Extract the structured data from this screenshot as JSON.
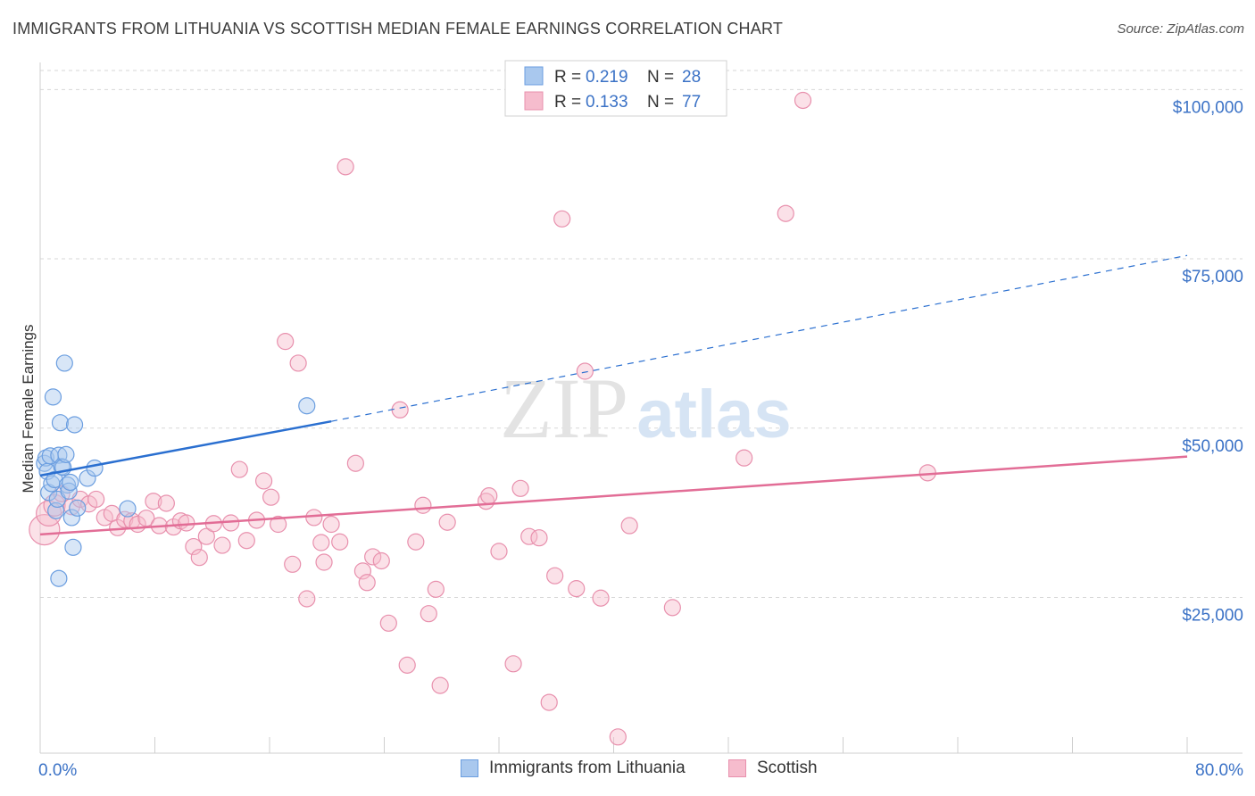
{
  "title": "IMMIGRANTS FROM LITHUANIA VS SCOTTISH MEDIAN FEMALE EARNINGS CORRELATION CHART",
  "source": "Source: ZipAtlas.com",
  "watermark": {
    "zip": "ZIP",
    "atlas": "atlas"
  },
  "colors": {
    "blue_fill": "#a9c8ee",
    "blue_stroke": "#6b9ee0",
    "blue_line": "#2a6fd0",
    "pink_fill": "#f6bccd",
    "pink_stroke": "#e890ad",
    "pink_line": "#e26d96",
    "value_text": "#3b72c6",
    "grid": "#d7d7d7"
  },
  "legend": {
    "rows": [
      {
        "r_label": "R =",
        "r_value": "0.219",
        "n_label": "N =",
        "n_value": "28",
        "series": "blue"
      },
      {
        "r_label": "R =",
        "r_value": "0.133",
        "n_label": "N =",
        "n_value": "77",
        "series": "pink"
      }
    ]
  },
  "bottom_legend": [
    {
      "label": "Immigrants from Lithuania",
      "series": "blue"
    },
    {
      "label": "Scottish",
      "series": "pink"
    }
  ],
  "chart_data": {
    "type": "scatter",
    "title": "IMMIGRANTS FROM LITHUANIA VS SCOTTISH MEDIAN FEMALE EARNINGS CORRELATION CHART",
    "xlabel": "",
    "ylabel": "Median Female Earnings",
    "xlim": [
      0,
      80
    ],
    "ylim": [
      2000,
      104000
    ],
    "x_tick_labels": [
      "0.0%",
      "80.0%"
    ],
    "y_ticks": [
      {
        "value": 25000,
        "label": "$25,000"
      },
      {
        "value": 50000,
        "label": "$50,000"
      },
      {
        "value": 75000,
        "label": "$75,000"
      },
      {
        "value": 100000,
        "label": "$100,000"
      }
    ],
    "grid": "horizontal dashed",
    "legend_placement": "top-center",
    "series": [
      {
        "name": "Immigrants from Lithuania",
        "color": "blue",
        "r": 0.219,
        "n": 28,
        "trend": {
          "x0": 0,
          "y0": 43000,
          "x_solid_end": 20.3,
          "y_solid_end": 51000,
          "x1": 80,
          "y1": 75500
        },
        "points": [
          [
            0.3,
            44800
          ],
          [
            0.4,
            45600
          ],
          [
            0.5,
            43600
          ],
          [
            0.6,
            40500
          ],
          [
            0.7,
            45900
          ],
          [
            0.8,
            41800
          ],
          [
            0.9,
            54600
          ],
          [
            1.0,
            42400
          ],
          [
            1.1,
            37800
          ],
          [
            1.2,
            39500
          ],
          [
            1.3,
            46000
          ],
          [
            1.4,
            50800
          ],
          [
            1.5,
            44300
          ],
          [
            1.6,
            44200
          ],
          [
            1.7,
            59600
          ],
          [
            1.8,
            46100
          ],
          [
            1.9,
            41600
          ],
          [
            2.0,
            40700
          ],
          [
            2.1,
            42000
          ],
          [
            2.2,
            36800
          ],
          [
            2.3,
            32400
          ],
          [
            2.4,
            50500
          ],
          [
            2.6,
            38200
          ],
          [
            3.3,
            42600
          ],
          [
            3.8,
            44100
          ],
          [
            6.1,
            38100
          ],
          [
            1.3,
            27800
          ],
          [
            18.6,
            53300
          ]
        ]
      },
      {
        "name": "Scottish",
        "color": "pink",
        "r": 0.133,
        "n": 77,
        "trend": {
          "x0": 0,
          "y0": 34300,
          "x1": 80,
          "y1": 45800
        },
        "points": [
          [
            0.3,
            35000
          ],
          [
            0.6,
            37400
          ],
          [
            1.0,
            38600
          ],
          [
            1.5,
            40300
          ],
          [
            2.2,
            38400
          ],
          [
            2.8,
            39500
          ],
          [
            3.4,
            38800
          ],
          [
            3.9,
            39500
          ],
          [
            4.5,
            36800
          ],
          [
            5.0,
            37400
          ],
          [
            5.4,
            35300
          ],
          [
            5.9,
            36500
          ],
          [
            6.4,
            36300
          ],
          [
            6.8,
            35800
          ],
          [
            7.4,
            36700
          ],
          [
            7.9,
            39200
          ],
          [
            8.3,
            35600
          ],
          [
            8.8,
            38900
          ],
          [
            9.3,
            35400
          ],
          [
            9.8,
            36300
          ],
          [
            10.2,
            36000
          ],
          [
            10.7,
            32500
          ],
          [
            11.1,
            30900
          ],
          [
            11.6,
            34000
          ],
          [
            12.1,
            35900
          ],
          [
            12.7,
            32700
          ],
          [
            13.3,
            36000
          ],
          [
            13.9,
            43900
          ],
          [
            14.4,
            33400
          ],
          [
            15.1,
            36400
          ],
          [
            15.6,
            42200
          ],
          [
            16.1,
            39800
          ],
          [
            16.6,
            35800
          ],
          [
            17.1,
            62800
          ],
          [
            17.6,
            29900
          ],
          [
            18.0,
            59600
          ],
          [
            18.6,
            24800
          ],
          [
            19.1,
            36800
          ],
          [
            19.6,
            33100
          ],
          [
            19.8,
            30200
          ],
          [
            20.3,
            35800
          ],
          [
            20.9,
            33200
          ],
          [
            21.3,
            88600
          ],
          [
            22.0,
            44800
          ],
          [
            22.5,
            28900
          ],
          [
            22.8,
            27200
          ],
          [
            23.2,
            31000
          ],
          [
            23.8,
            30400
          ],
          [
            24.3,
            21200
          ],
          [
            25.1,
            52700
          ],
          [
            25.6,
            15000
          ],
          [
            26.2,
            33200
          ],
          [
            26.7,
            38600
          ],
          [
            27.1,
            22600
          ],
          [
            27.6,
            26200
          ],
          [
            27.9,
            12000
          ],
          [
            28.4,
            36100
          ],
          [
            31.1,
            39200
          ],
          [
            31.3,
            40000
          ],
          [
            32.0,
            31800
          ],
          [
            33.0,
            15200
          ],
          [
            33.5,
            41100
          ],
          [
            34.1,
            34000
          ],
          [
            34.8,
            33800
          ],
          [
            35.5,
            9500
          ],
          [
            35.9,
            28200
          ],
          [
            36.4,
            80900
          ],
          [
            37.4,
            26300
          ],
          [
            38.0,
            58400
          ],
          [
            39.1,
            24900
          ],
          [
            40.3,
            4400
          ],
          [
            41.1,
            35600
          ],
          [
            44.1,
            23500
          ],
          [
            49.1,
            45600
          ],
          [
            52.0,
            81700
          ],
          [
            53.2,
            98400
          ],
          [
            61.9,
            43400
          ]
        ]
      }
    ]
  }
}
